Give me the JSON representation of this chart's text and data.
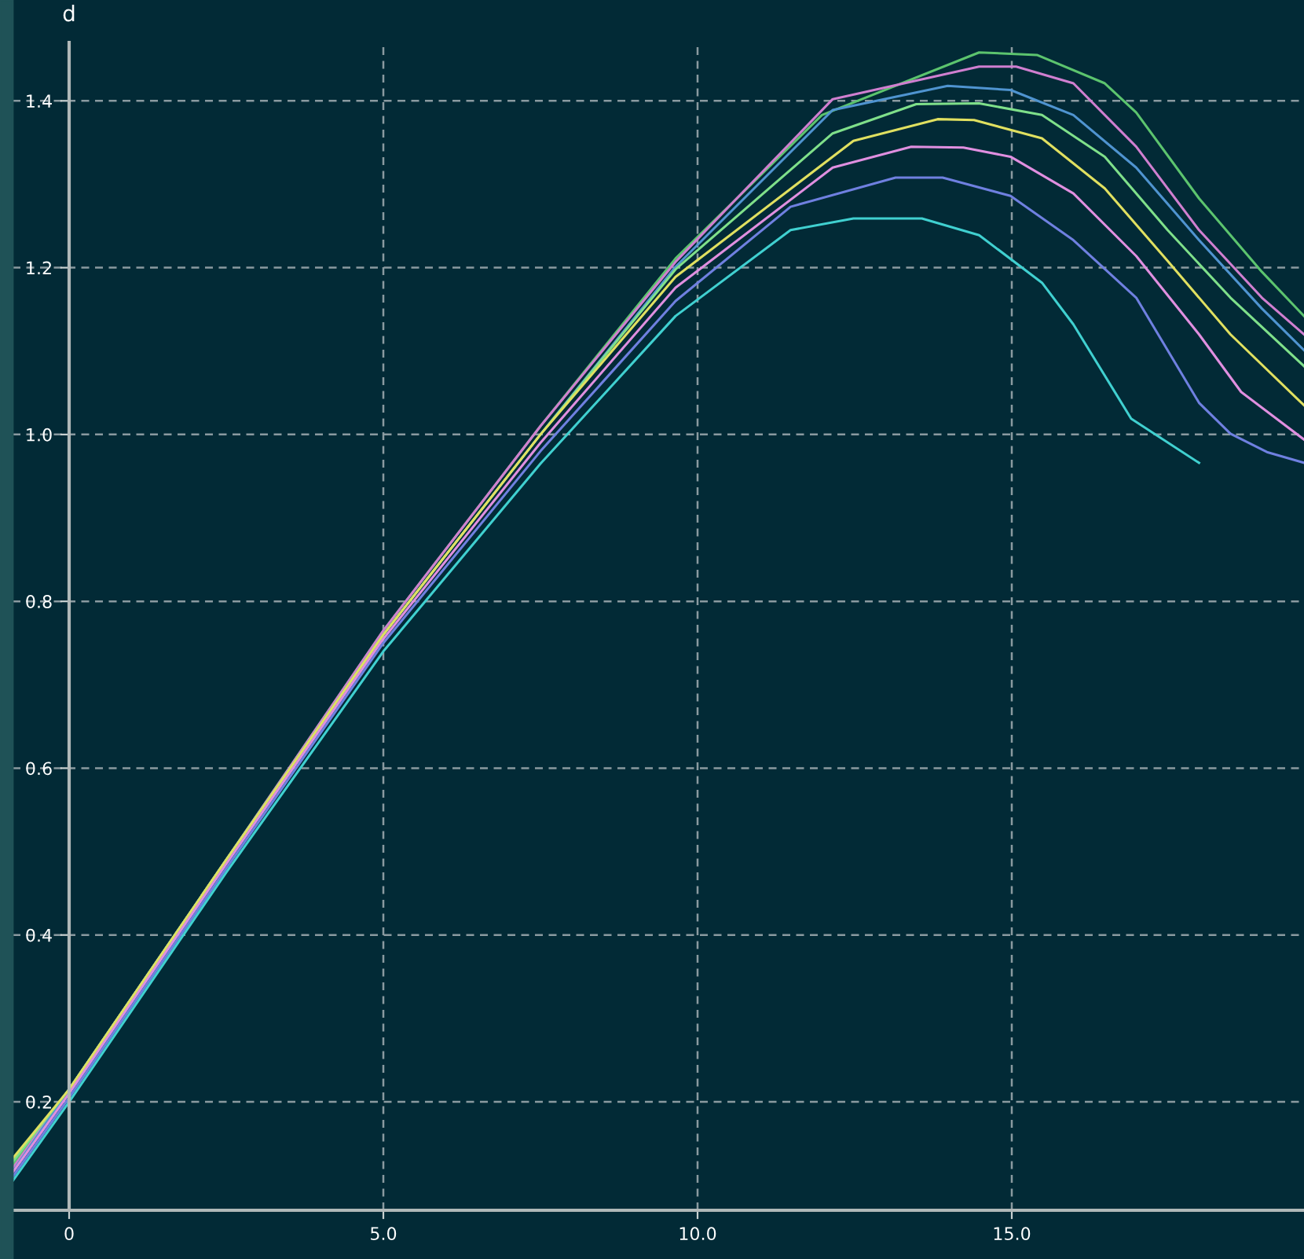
{
  "chart_data": {
    "type": "line",
    "ylabel": "d",
    "xlim": [
      -0.9,
      19.65
    ],
    "ylim": [
      0.07,
      1.47
    ],
    "xticks": [
      {
        "value": 0,
        "label": "0"
      },
      {
        "value": 5,
        "label": "5.0"
      },
      {
        "value": 10,
        "label": "10.0"
      },
      {
        "value": 15,
        "label": "15.0"
      }
    ],
    "yticks": [
      0.2,
      0.4,
      0.6,
      0.8,
      {
        "value": 1.0,
        "label": "1.0"
      },
      1.2,
      1.4
    ],
    "grid": true,
    "marker": "none",
    "line_style": "solid",
    "series": [
      {
        "color": "#5cc46e",
        "x": [
          -0.9,
          0,
          2.5,
          5,
          7.5,
          9.65,
          11.98,
          14.48,
          15.4,
          16.48,
          16.98,
          17.98,
          18.98,
          19.65
        ],
        "values": [
          0.124,
          0.215,
          0.49,
          0.765,
          1.01,
          1.211,
          1.383,
          1.458,
          1.455,
          1.421,
          1.386,
          1.283,
          1.195,
          1.142
        ]
      },
      {
        "color": "#d07fd0",
        "x": [
          -0.9,
          0,
          2.5,
          5,
          7.5,
          9.65,
          12.15,
          14.48,
          15.07,
          15.98,
          16.98,
          17.98,
          18.98,
          19.65
        ],
        "values": [
          0.12,
          0.215,
          0.49,
          0.765,
          1.01,
          1.207,
          1.402,
          1.441,
          1.441,
          1.421,
          1.345,
          1.245,
          1.164,
          1.12
        ]
      },
      {
        "color": "#4f94d0",
        "x": [
          -0.9,
          0,
          2.5,
          5,
          7.5,
          9.65,
          12.15,
          13.98,
          14.98,
          15.98,
          16.98,
          17.98,
          18.98,
          19.65
        ],
        "values": [
          0.116,
          0.215,
          0.49,
          0.76,
          1.0,
          1.201,
          1.389,
          1.418,
          1.413,
          1.383,
          1.32,
          1.233,
          1.151,
          1.101
        ]
      },
      {
        "color": "#7fe08a",
        "x": [
          -0.9,
          0,
          2.5,
          5,
          7.5,
          9.65,
          12.15,
          13.48,
          14.48,
          15.48,
          16.48,
          17.48,
          18.48,
          19.65
        ],
        "values": [
          0.128,
          0.215,
          0.49,
          0.76,
          1.0,
          1.198,
          1.361,
          1.396,
          1.397,
          1.383,
          1.333,
          1.245,
          1.164,
          1.082
        ]
      },
      {
        "color": "#e0e060",
        "x": [
          -0.9,
          0,
          2.5,
          5,
          7.5,
          9.65,
          12.48,
          13.82,
          14.4,
          15.48,
          16.48,
          17.48,
          18.48,
          19.65
        ],
        "values": [
          0.132,
          0.215,
          0.49,
          0.76,
          1.0,
          1.189,
          1.352,
          1.378,
          1.377,
          1.355,
          1.295,
          1.208,
          1.12,
          1.035
        ]
      },
      {
        "color": "#e08fe0",
        "x": [
          -0.9,
          0,
          2.5,
          5,
          7.5,
          9.65,
          12.15,
          13.4,
          14.23,
          14.98,
          15.98,
          16.98,
          17.98,
          18.65,
          19.65
        ],
        "values": [
          0.115,
          0.21,
          0.485,
          0.755,
          0.99,
          1.176,
          1.32,
          1.345,
          1.344,
          1.333,
          1.289,
          1.214,
          1.12,
          1.051,
          0.994
        ]
      },
      {
        "color": "#6f80e0",
        "x": [
          -0.9,
          0,
          2.5,
          5,
          7.5,
          9.65,
          11.48,
          13.15,
          13.9,
          14.98,
          15.98,
          16.98,
          17.98,
          18.48,
          19.06,
          19.65
        ],
        "values": [
          0.11,
          0.205,
          0.48,
          0.75,
          0.98,
          1.16,
          1.273,
          1.308,
          1.308,
          1.286,
          1.233,
          1.164,
          1.038,
          1.001,
          0.979,
          0.966
        ]
      },
      {
        "color": "#40d0d0",
        "x": [
          -0.9,
          0,
          2.5,
          5,
          7.5,
          9.65,
          11.48,
          12.48,
          13.57,
          14.48,
          15.48,
          15.98,
          16.9,
          17.98
        ],
        "values": [
          0.105,
          0.2,
          0.475,
          0.74,
          0.965,
          1.142,
          1.245,
          1.259,
          1.259,
          1.239,
          1.182,
          1.132,
          1.019,
          0.966
        ]
      }
    ]
  }
}
